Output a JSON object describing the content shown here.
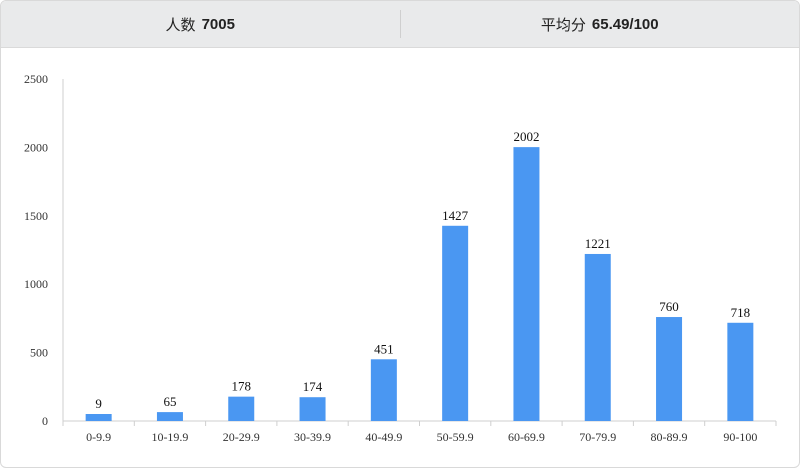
{
  "header": {
    "count_label": "人数",
    "count_value": "7005",
    "avg_label": "平均分",
    "avg_value": "65.49/100"
  },
  "chart_data": {
    "type": "bar",
    "categories": [
      "0-9.9",
      "10-19.9",
      "20-29.9",
      "30-39.9",
      "40-49.9",
      "50-59.9",
      "60-69.9",
      "70-79.9",
      "80-89.9",
      "90-100"
    ],
    "values": [
      9,
      65,
      178,
      174,
      451,
      1427,
      2002,
      1221,
      760,
      718
    ],
    "ylim": [
      0,
      2500
    ],
    "yticks": [
      0,
      500,
      1000,
      1500,
      2000,
      2500
    ],
    "bar_color": "#4a97f2",
    "grid": false,
    "title": "",
    "xlabel": "",
    "ylabel": ""
  }
}
